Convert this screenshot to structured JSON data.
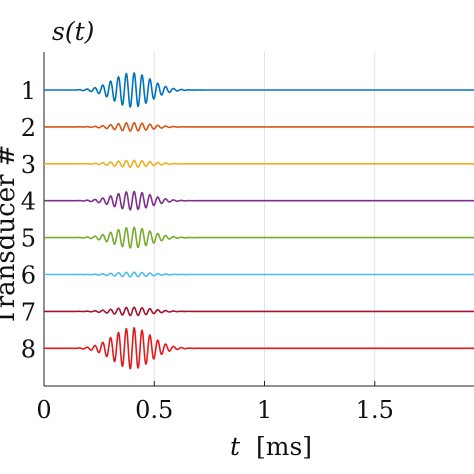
{
  "chart_data": {
    "type": "line",
    "title": "s(t)",
    "xlabel_var": "t",
    "xlabel_unit": "[ms]",
    "ylabel": "Transducer #",
    "xlim": [
      0,
      1.95
    ],
    "x_ticks": [
      0,
      0.5,
      1,
      1.5
    ],
    "x_tick_labels": [
      "0",
      "0.5",
      "1",
      "1.5"
    ],
    "categories": [
      "1",
      "2",
      "3",
      "4",
      "5",
      "6",
      "7",
      "8"
    ],
    "grid": true,
    "pulse_center_ms": 0.4,
    "pulse_extent_ms": [
      0.2,
      0.72
    ],
    "series": [
      {
        "category": "1",
        "amplitude": 0.75,
        "color": "#0072BD"
      },
      {
        "category": "2",
        "amplitude": 0.18,
        "color": "#D95319"
      },
      {
        "category": "3",
        "amplitude": 0.15,
        "color": "#EDB120"
      },
      {
        "category": "4",
        "amplitude": 0.4,
        "color": "#7E2F8E"
      },
      {
        "category": "5",
        "amplitude": 0.45,
        "color": "#77AC30"
      },
      {
        "category": "6",
        "amplitude": 0.1,
        "color": "#4DBEEE"
      },
      {
        "category": "7",
        "amplitude": 0.18,
        "color": "#A2142F"
      },
      {
        "category": "8",
        "amplitude": 0.9,
        "color": "#E31A1C"
      }
    ]
  }
}
